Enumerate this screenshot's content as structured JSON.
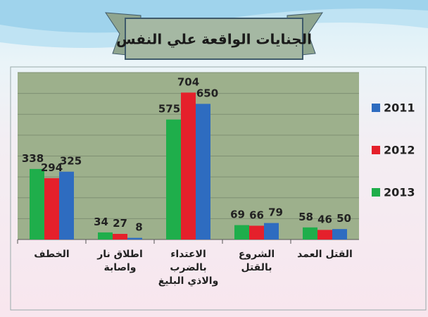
{
  "chart_data": {
    "type": "bar",
    "title": "الجنايات الواقعة علي النفس",
    "categories": [
      "الخطف",
      "اطلاق نار واصابة",
      "الاعتداء بالضرب والاذي البليغ",
      "الشروع بالقتل",
      "القتل العمد"
    ],
    "series": [
      {
        "name": "2013",
        "color": "#1fae4b",
        "values": [
          338,
          34,
          575,
          69,
          58
        ]
      },
      {
        "name": "2012",
        "color": "#e5202b",
        "values": [
          294,
          27,
          704,
          66,
          46
        ]
      },
      {
        "name": "2011",
        "color": "#2e6cc0",
        "values": [
          325,
          8,
          650,
          79,
          50
        ]
      }
    ],
    "ylim": [
      0,
      800
    ],
    "yticks": [
      0,
      100,
      200,
      300,
      400,
      500,
      600,
      700,
      800
    ],
    "grid": true,
    "legend": "right"
  }
}
